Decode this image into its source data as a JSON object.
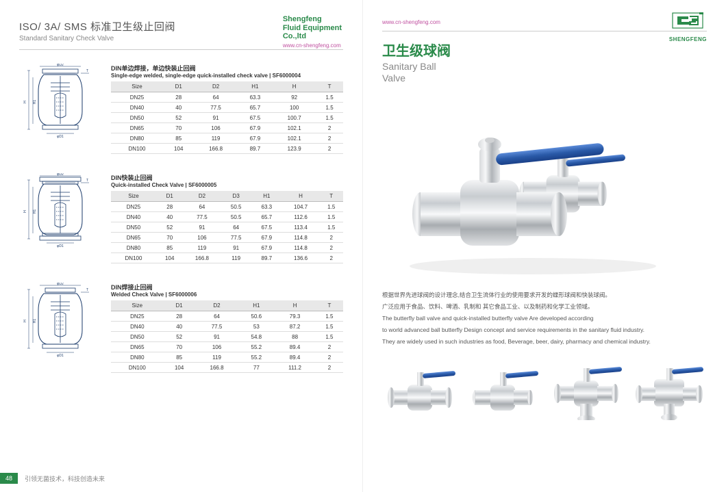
{
  "left": {
    "title_cn": "ISO/ 3A/ SMS 标准卫生级止回阀",
    "title_en": "Standard Sanitary Check Valve",
    "brand": {
      "l1": "Shengfeng",
      "l2": "Fluid Equipment",
      "l3": "Co.,ltd",
      "url": "www.cn-shengfeng.com"
    },
    "sections": [
      {
        "cap_cn": "DIN单边焊接，单边快装止回阀",
        "cap_en": "Single-edge welded, single-edge quick-installed check valve | SF6000004",
        "headers": [
          "Size",
          "D1",
          "D2",
          "H1",
          "H",
          "T"
        ],
        "rows": [
          [
            "DN25",
            "28",
            "64",
            "63.3",
            "92",
            "1.5"
          ],
          [
            "DN40",
            "40",
            "77.5",
            "65.7",
            "100",
            "1.5"
          ],
          [
            "DN50",
            "52",
            "91",
            "67.5",
            "100.7",
            "1.5"
          ],
          [
            "DN65",
            "70",
            "106",
            "67.9",
            "102.1",
            "2"
          ],
          [
            "DN80",
            "85",
            "119",
            "67.9",
            "102.1",
            "2"
          ],
          [
            "DN100",
            "104",
            "166.8",
            "89.7",
            "123.9",
            "2"
          ]
        ]
      },
      {
        "cap_cn": "DIN快装止回阀",
        "cap_en": "Quick-installed Check Valve | SF6000005",
        "headers": [
          "Size",
          "D1",
          "D2",
          "D3",
          "H1",
          "H",
          "T"
        ],
        "rows": [
          [
            "DN25",
            "28",
            "64",
            "50.5",
            "63.3",
            "104.7",
            "1.5"
          ],
          [
            "DN40",
            "40",
            "77.5",
            "50.5",
            "65.7",
            "112.6",
            "1.5"
          ],
          [
            "DN50",
            "52",
            "91",
            "64",
            "67.5",
            "113.4",
            "1.5"
          ],
          [
            "DN65",
            "70",
            "106",
            "77.5",
            "67.9",
            "114.8",
            "2"
          ],
          [
            "DN80",
            "85",
            "119",
            "91",
            "67.9",
            "114.8",
            "2"
          ],
          [
            "DN100",
            "104",
            "166.8",
            "119",
            "89.7",
            "136.6",
            "2"
          ]
        ]
      },
      {
        "cap_cn": "DIN焊接止回阀",
        "cap_en": "Welded Check Valve | SF6000006",
        "headers": [
          "Size",
          "D1",
          "D2",
          "H1",
          "H",
          "T"
        ],
        "rows": [
          [
            "DN25",
            "28",
            "64",
            "50.6",
            "79.3",
            "1.5"
          ],
          [
            "DN40",
            "40",
            "77.5",
            "53",
            "87.2",
            "1.5"
          ],
          [
            "DN50",
            "52",
            "91",
            "54.8",
            "88",
            "1.5"
          ],
          [
            "DN65",
            "70",
            "106",
            "55.2",
            "89.4",
            "2"
          ],
          [
            "DN80",
            "85",
            "119",
            "55.2",
            "89.4",
            "2"
          ],
          [
            "DN100",
            "104",
            "166.8",
            "77",
            "111.2",
            "2"
          ]
        ]
      }
    ],
    "footer": {
      "page": "48",
      "tag": "引领无菌技术，科技创造未来"
    }
  },
  "right": {
    "url": "www.cn-shengfeng.com",
    "logo_name": "SHENGFENG",
    "title_cn": "卫生级球阀",
    "title_en_l1": "Sanitary Ball",
    "title_en_l2": "Valve",
    "desc_cn_l1": "根据世界先进球阀的设计理念,结合卫生流体行业的使用要求开发的蝶形球阀和快装球阀。",
    "desc_cn_l2": "广泛应用于食品、饮料、啤酒、乳制和 其它食品工业、以及制药和化学工业领域。",
    "desc_en_l1": "The butterfly ball valve and quick-installed butterfly valve Are developed according",
    "desc_en_l2": "to world advanced ball butterfly Design concept and service requirements in the sanitary fluid industry.",
    "desc_en_l3": "They are widely used in such industries as food, Beverage, beer, dairy, pharmacy and chemical industry.",
    "colors": {
      "brand": "#2a8a4a",
      "handle": "#2a5aa8",
      "steel_light": "#e8e8ea",
      "steel_mid": "#b8bcc0",
      "steel_dark": "#888c92"
    }
  }
}
